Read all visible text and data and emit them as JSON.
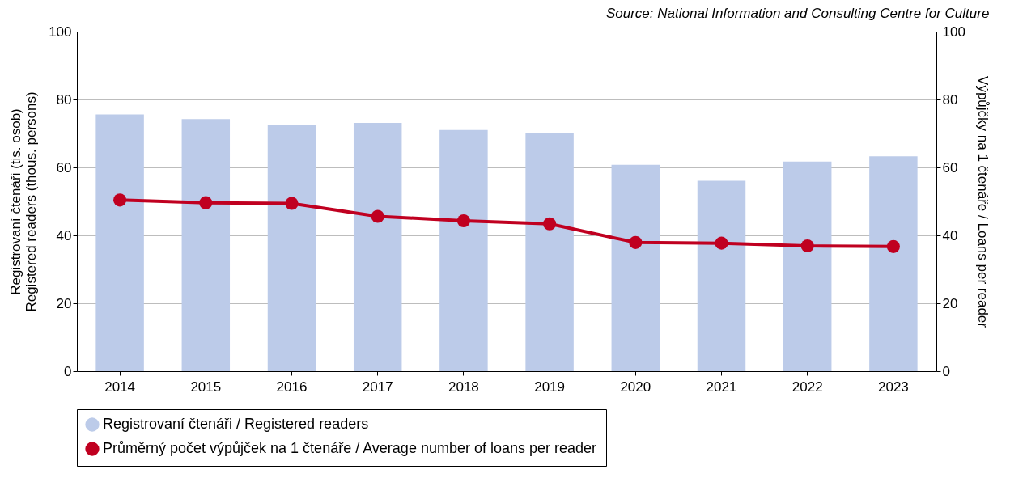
{
  "chart_data": {
    "type": "bar",
    "annotations": [
      "Source: National Information and Consulting Centre for Culture"
    ],
    "categories": [
      "2014",
      "2015",
      "2016",
      "2017",
      "2018",
      "2019",
      "2020",
      "2021",
      "2022",
      "2023"
    ],
    "ylabel": "Registrovaní čtenáři (tis. osob)\nRegistered readers (thous. persons)",
    "y2label": "Výpůjčky na 1 čtenáře / Loans per reader",
    "ylim": [
      0,
      100
    ],
    "yticks": [
      0,
      20,
      40,
      60,
      80,
      100
    ],
    "y2lim": [
      0,
      100
    ],
    "y2ticks": [
      0,
      20,
      40,
      60,
      80,
      100
    ],
    "grid": "y",
    "legend": "bottom",
    "marker": "circle",
    "line_style": "solid",
    "series": [
      {
        "name": "Registrovaní čtenáři / Registered readers",
        "color": "#bccbe9",
        "values": [
          75.6,
          74.2,
          72.5,
          73.1,
          71.0,
          70.1,
          60.8,
          56.1,
          61.7,
          63.3
        ]
      },
      {
        "name": "Průměrný počet výpůjček na 1 čtenáře / Average number of loans per reader",
        "type": "line",
        "axis": "y2",
        "color": "#c00020",
        "values": [
          50.4,
          49.6,
          49.4,
          45.6,
          44.3,
          43.4,
          37.9,
          37.7,
          36.9,
          36.7
        ]
      }
    ]
  }
}
